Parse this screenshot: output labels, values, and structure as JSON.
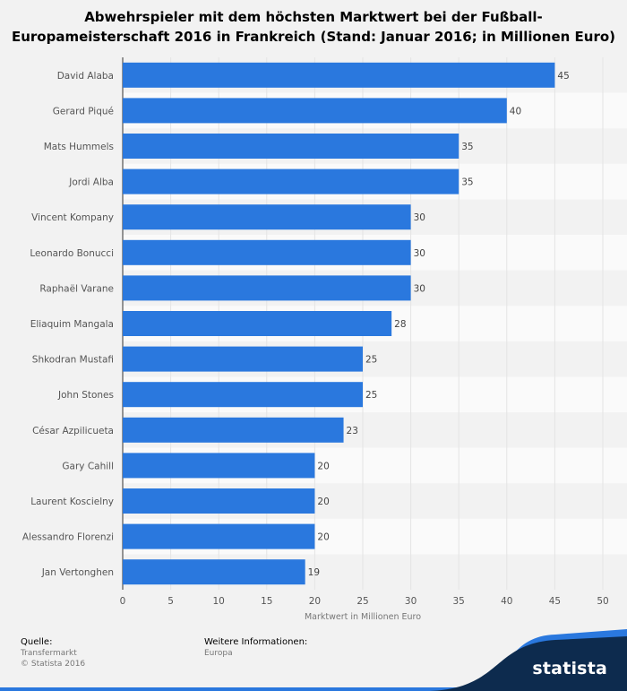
{
  "title": "Abwehrspieler mit dem höchsten Marktwert bei der Fußball-Europameisterschaft 2016 in Frankreich (Stand: Januar 2016; in Millionen Euro)",
  "chart_data": {
    "type": "bar",
    "orientation": "horizontal",
    "title": "Abwehrspieler mit dem höchsten Marktwert bei der Fußball-Europameisterschaft 2016 in Frankreich (Stand: Januar 2016; in Millionen Euro)",
    "xlabel": "Marktwert in Millionen Euro",
    "ylabel": "",
    "xlim": [
      0,
      50
    ],
    "xticks": [
      "0",
      "5",
      "10",
      "15",
      "20",
      "25",
      "30",
      "35",
      "40",
      "45",
      "50"
    ],
    "grid": true,
    "categories": [
      "David Alaba",
      "Gerard Piqué",
      "Mats Hummels",
      "Jordi Alba",
      "Vincent Kompany",
      "Leonardo Bonucci",
      "Raphaël Varane",
      "Eliaquim Mangala",
      "Shkodran Mustafi",
      "John Stones",
      "César Azpilicueta",
      "Gary Cahill",
      "Laurent Koscielny",
      "Alessandro Florenzi",
      "Jan Vertonghen"
    ],
    "values": [
      45,
      40,
      35,
      35,
      30,
      30,
      30,
      28,
      25,
      25,
      23,
      20,
      20,
      20,
      19
    ],
    "bar_color": "#2a78de"
  },
  "footer": {
    "source_heading": "Quelle:",
    "source_lines": [
      "Transfermarkt",
      "© Statista 2016"
    ],
    "info_heading": "Weitere Informationen:",
    "info_value": "Europa"
  },
  "brand": {
    "logo_text": "statista",
    "dark_color": "#0d2b4e",
    "accent_color": "#2a78de"
  }
}
